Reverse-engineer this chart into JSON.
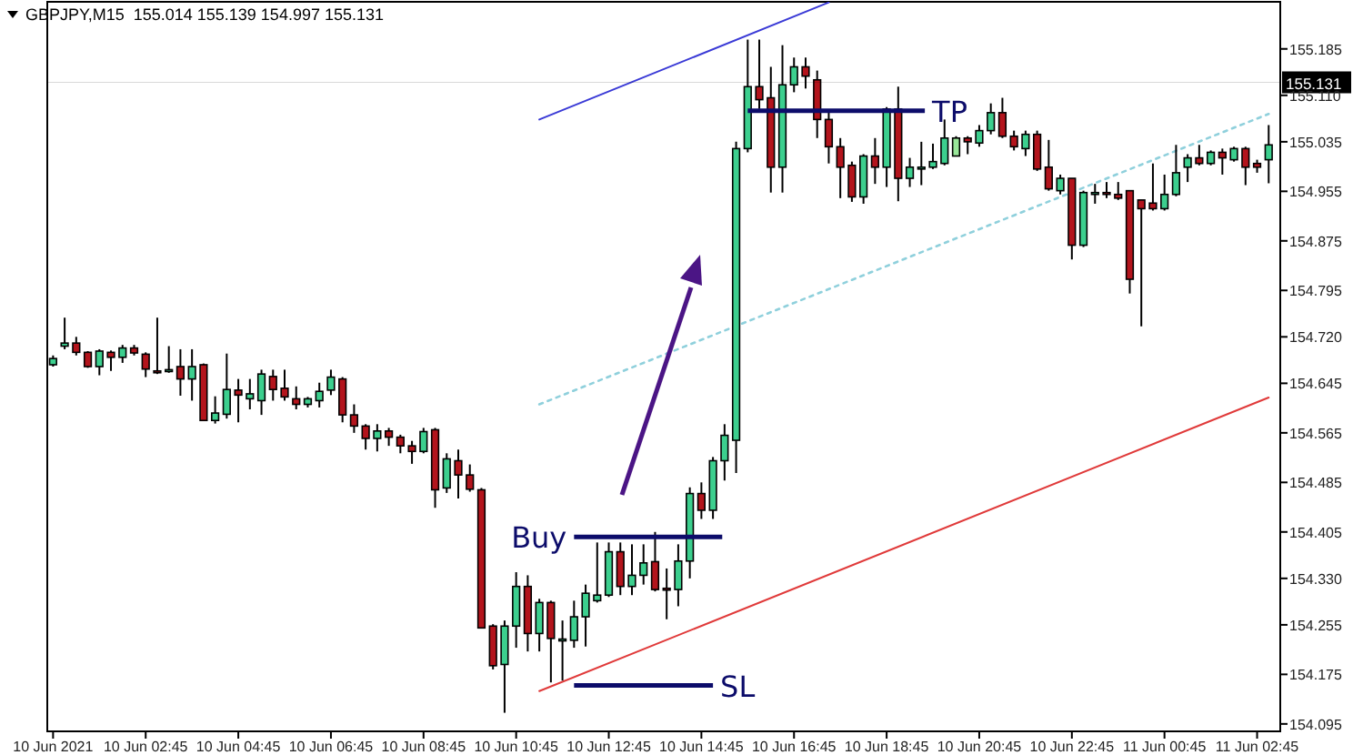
{
  "chart_data": {
    "type": "candlestick",
    "title": "GBPJPY,M15  155.014 155.139 154.997 155.131",
    "categories": [
      "10 Jun 2021",
      null,
      null,
      null,
      null,
      null,
      null,
      null,
      "10 Jun 02:45",
      null,
      null,
      null,
      null,
      null,
      null,
      null,
      "10 Jun 04:45",
      null,
      null,
      null,
      null,
      null,
      null,
      null,
      "10 Jun 06:45",
      null,
      null,
      null,
      null,
      null,
      null,
      null,
      "10 Jun 08:45",
      null,
      null,
      null,
      null,
      null,
      null,
      null,
      "10 Jun 10:45",
      null,
      null,
      null,
      null,
      null,
      null,
      null,
      "10 Jun 12:45",
      null,
      null,
      null,
      null,
      null,
      null,
      null,
      "10 Jun 14:45",
      null,
      null,
      null,
      null,
      null,
      null,
      null,
      "10 Jun 16:45",
      null,
      null,
      null,
      null,
      null,
      null,
      null,
      "10 Jun 18:45",
      null,
      null,
      null,
      null,
      null,
      null,
      null,
      "10 Jun 20:45",
      null,
      null,
      null,
      null,
      null,
      null,
      null,
      "10 Jun 22:45",
      null,
      null,
      null,
      null,
      null,
      null,
      null,
      "11 Jun 00:45",
      null,
      null,
      null,
      null,
      null,
      null,
      null,
      "11 Jun 02:45",
      null
    ],
    "ohlc": [
      [
        154.675,
        154.69,
        154.672,
        154.685
      ],
      [
        154.705,
        154.751,
        154.7,
        154.71
      ],
      [
        154.71,
        154.72,
        154.69,
        154.695
      ],
      [
        154.695,
        154.697,
        154.67,
        154.672
      ],
      [
        154.672,
        154.7,
        154.658,
        154.697
      ],
      [
        154.695,
        154.698,
        154.665,
        154.687
      ],
      [
        154.687,
        154.707,
        154.678,
        154.702
      ],
      [
        154.702,
        154.707,
        154.69,
        154.694
      ],
      [
        154.692,
        154.695,
        154.655,
        154.668
      ],
      [
        154.665,
        154.751,
        154.66,
        154.663
      ],
      [
        154.664,
        154.705,
        154.662,
        154.667
      ],
      [
        154.672,
        154.7,
        154.625,
        154.652
      ],
      [
        154.652,
        154.7,
        154.617,
        154.672
      ],
      [
        154.675,
        154.677,
        154.585,
        154.585
      ],
      [
        154.585,
        154.624,
        154.58,
        154.597
      ],
      [
        154.595,
        154.693,
        154.588,
        154.635
      ],
      [
        154.634,
        154.652,
        154.582,
        154.626
      ],
      [
        154.62,
        154.652,
        154.603,
        154.628
      ],
      [
        154.617,
        154.667,
        154.594,
        154.66
      ],
      [
        154.656,
        154.667,
        154.617,
        154.635
      ],
      [
        154.637,
        154.667,
        154.617,
        154.623
      ],
      [
        154.62,
        154.64,
        154.603,
        154.611
      ],
      [
        154.611,
        154.623,
        154.606,
        154.62
      ],
      [
        154.617,
        154.646,
        154.606,
        154.632
      ],
      [
        154.634,
        154.667,
        154.626,
        154.655
      ],
      [
        154.652,
        154.655,
        154.582,
        154.594
      ],
      [
        154.594,
        154.611,
        154.565,
        154.576
      ],
      [
        154.576,
        154.579,
        154.538,
        154.556
      ],
      [
        154.556,
        154.579,
        154.535,
        154.568
      ],
      [
        154.568,
        154.573,
        154.544,
        154.558
      ],
      [
        154.558,
        154.562,
        154.532,
        154.544
      ],
      [
        154.544,
        154.552,
        154.515,
        154.535
      ],
      [
        154.535,
        154.573,
        154.532,
        154.567
      ],
      [
        154.57,
        154.573,
        154.444,
        154.473
      ],
      [
        154.476,
        154.532,
        154.468,
        154.523
      ],
      [
        154.52,
        154.538,
        154.459,
        154.497
      ],
      [
        154.497,
        154.514,
        154.47,
        154.474
      ],
      [
        154.473,
        154.476,
        154.25,
        154.25
      ],
      [
        154.253,
        154.256,
        154.183,
        154.189
      ],
      [
        154.191,
        154.262,
        154.113,
        154.253
      ],
      [
        154.253,
        154.34,
        154.218,
        154.317
      ],
      [
        154.317,
        154.335,
        154.212,
        154.241
      ],
      [
        154.241,
        154.297,
        154.212,
        154.291
      ],
      [
        154.291,
        154.294,
        154.162,
        154.233
      ],
      [
        154.23,
        154.262,
        154.165,
        154.232
      ],
      [
        154.23,
        154.294,
        154.218,
        154.268
      ],
      [
        154.268,
        154.32,
        154.22,
        154.306
      ],
      [
        154.294,
        154.388,
        154.291,
        154.303
      ],
      [
        154.303,
        154.388,
        154.3,
        154.373
      ],
      [
        154.373,
        154.388,
        154.303,
        154.317
      ],
      [
        154.317,
        154.385,
        154.303,
        154.335
      ],
      [
        154.335,
        154.385,
        154.32,
        154.355
      ],
      [
        154.357,
        154.405,
        154.309,
        154.312
      ],
      [
        154.314,
        154.346,
        154.264,
        154.312
      ],
      [
        154.312,
        154.385,
        154.285,
        154.358
      ],
      [
        154.358,
        154.477,
        154.33,
        154.467
      ],
      [
        154.467,
        154.485,
        154.426,
        154.44
      ],
      [
        154.44,
        154.526,
        154.426,
        154.52
      ],
      [
        154.52,
        154.579,
        154.488,
        154.561
      ],
      [
        154.553,
        155.035,
        154.5,
        155.024
      ],
      [
        155.024,
        155.2,
        155.018,
        155.124
      ],
      [
        155.124,
        155.2,
        155.088,
        155.103
      ],
      [
        155.106,
        155.156,
        154.953,
        154.994
      ],
      [
        154.994,
        155.191,
        154.953,
        155.127
      ],
      [
        155.127,
        155.171,
        155.115,
        155.156
      ],
      [
        155.156,
        155.171,
        155.121,
        155.141
      ],
      [
        155.135,
        155.15,
        155.041,
        155.071
      ],
      [
        155.071,
        155.085,
        155,
        155.027
      ],
      [
        155.027,
        155.041,
        154.944,
        154.994
      ],
      [
        154.997,
        155.003,
        154.938,
        154.946
      ],
      [
        154.946,
        155.015,
        154.935,
        155.012
      ],
      [
        155.012,
        155.041,
        154.967,
        154.994
      ],
      [
        154.994,
        155.091,
        154.962,
        155.088
      ],
      [
        155.088,
        155.124,
        154.939,
        154.976
      ],
      [
        154.976,
        155.009,
        154.962,
        154.994
      ],
      [
        154.991,
        155.035,
        154.965,
        154.994
      ],
      [
        154.994,
        155.032,
        154.991,
        155.003
      ],
      [
        155,
        155.071,
        154.997,
        155.041
      ],
      [
        155.012,
        155.044,
        155.012,
        155.041
      ],
      [
        155.041,
        155.044,
        155.015,
        155.035
      ],
      [
        155.033,
        155.062,
        155.027,
        155.053
      ],
      [
        155.053,
        155.097,
        155.047,
        155.082
      ],
      [
        155.082,
        155.106,
        155.041,
        155.044
      ],
      [
        155.044,
        155.053,
        155.021,
        155.027
      ],
      [
        155.024,
        155.053,
        155.012,
        155.047
      ],
      [
        155.047,
        155.053,
        154.988,
        154.991
      ],
      [
        154.994,
        155.038,
        154.956,
        154.959
      ],
      [
        154.956,
        154.982,
        154.95,
        154.976
      ],
      [
        154.976,
        154.976,
        154.845,
        154.868
      ],
      [
        154.868,
        154.956,
        154.865,
        154.953
      ],
      [
        154.95,
        154.967,
        154.935,
        154.953
      ],
      [
        154.953,
        154.97,
        154.944,
        154.95
      ],
      [
        154.95,
        154.97,
        154.941,
        154.944
      ],
      [
        154.956,
        154.956,
        154.79,
        154.813
      ],
      [
        154.941,
        154.941,
        154.737,
        154.927
      ],
      [
        154.936,
        155,
        154.924,
        154.927
      ],
      [
        154.927,
        154.982,
        154.924,
        154.95
      ],
      [
        154.95,
        155.03,
        154.947,
        154.985
      ],
      [
        154.994,
        155.015,
        154.97,
        155.009
      ],
      [
        155.009,
        155.03,
        154.997,
        155
      ],
      [
        155,
        155.021,
        154.997,
        155.018
      ],
      [
        155.018,
        155.024,
        154.982,
        155.009
      ],
      [
        155.006,
        155.027,
        155.003,
        155.024
      ],
      [
        155.024,
        155.027,
        154.965,
        154.994
      ],
      [
        155,
        155.006,
        154.985,
        154.994
      ],
      [
        155.006,
        155.062,
        154.968,
        155.03
      ]
    ],
    "colors": [
      "#3ccf8e",
      "#3ccf8e",
      "#b3141c",
      "#b3141c",
      "#3ccf8e",
      "#b3141c",
      "#3ccf8e",
      "#b3141c",
      "#b3141c",
      "#b3141c",
      "#3ccf8e",
      "#b3141c",
      "#3ccf8e",
      "#b3141c",
      "#3ccf8e",
      "#3ccf8e",
      "#b3141c",
      "#3ccf8e",
      "#3ccf8e",
      "#b3141c",
      "#b3141c",
      "#b3141c",
      "#3ccf8e",
      "#3ccf8e",
      "#3ccf8e",
      "#b3141c",
      "#b3141c",
      "#b3141c",
      "#3ccf8e",
      "#b3141c",
      "#b3141c",
      "#b3141c",
      "#3ccf8e",
      "#b3141c",
      "#3ccf8e",
      "#b3141c",
      "#b3141c",
      "#b3141c",
      "#b3141c",
      "#3ccf8e",
      "#3ccf8e",
      "#b3141c",
      "#3ccf8e",
      "#b3141c",
      "#3ccf8e",
      "#3ccf8e",
      "#3ccf8e",
      "#3ccf8e",
      "#3ccf8e",
      "#b3141c",
      "#3ccf8e",
      "#3ccf8e",
      "#b3141c",
      "#b3141c",
      "#3ccf8e",
      "#3ccf8e",
      "#b3141c",
      "#3ccf8e",
      "#3ccf8e",
      "#3ccf8e",
      "#3ccf8e",
      "#b3141c",
      "#b3141c",
      "#3ccf8e",
      "#3ccf8e",
      "#b3141c",
      "#b3141c",
      "#b3141c",
      "#b3141c",
      "#b3141c",
      "#3ccf8e",
      "#b3141c",
      "#3ccf8e",
      "#b3141c",
      "#3ccf8e",
      "#3ccf8e",
      "#3ccf8e",
      "#3ccf8e",
      "#9ae89a",
      "#b3141c",
      "#3ccf8e",
      "#3ccf8e",
      "#b3141c",
      "#b3141c",
      "#3ccf8e",
      "#b3141c",
      "#b3141c",
      "#3ccf8e",
      "#b3141c",
      "#3ccf8e",
      "#3ccf8e",
      "#b3141c",
      "#b3141c",
      "#b3141c",
      "#b3141c",
      "#b3141c",
      "#3ccf8e",
      "#3ccf8e",
      "#3ccf8e",
      "#b3141c",
      "#3ccf8e",
      "#b3141c",
      "#3ccf8e",
      "#b3141c",
      "#b3141c",
      "#3ccf8e"
    ],
    "series": [
      {
        "type": "line",
        "values": [
          null,
          null,
          null,
          null,
          null,
          null,
          null,
          null,
          null,
          null,
          null,
          null,
          null,
          null,
          null,
          null,
          null,
          null,
          null,
          null,
          null,
          null,
          null,
          null,
          null,
          null,
          null,
          null,
          null,
          null,
          null,
          null,
          null,
          null,
          null,
          null,
          null,
          null,
          null,
          null,
          null,
          null,
          155.071,
          null,
          null,
          null,
          null,
          null,
          null,
          null,
          null,
          null,
          null,
          null,
          null,
          null,
          null,
          null,
          null,
          null,
          null,
          null,
          null,
          null,
          null,
          null,
          null,
          155.26,
          null,
          null,
          null,
          null,
          null,
          null,
          null,
          null,
          null,
          null,
          null,
          null,
          null,
          null,
          null,
          null,
          null,
          null,
          null,
          null,
          null,
          null,
          null,
          null,
          null,
          null,
          null,
          null,
          null,
          null,
          null,
          null,
          null,
          null,
          null,
          null,
          null,
          null
        ],
        "color": "#3a3ad6",
        "line_style": "solid"
      },
      {
        "type": "line",
        "values": [
          null,
          null,
          null,
          null,
          null,
          null,
          null,
          null,
          null,
          null,
          null,
          null,
          null,
          null,
          null,
          null,
          null,
          null,
          null,
          null,
          null,
          null,
          null,
          null,
          null,
          null,
          null,
          null,
          null,
          null,
          null,
          null,
          null,
          null,
          null,
          null,
          null,
          null,
          null,
          null,
          null,
          null,
          154.148,
          null,
          null,
          null,
          null,
          null,
          null,
          null,
          null,
          null,
          null,
          null,
          null,
          null,
          null,
          null,
          null,
          null,
          null,
          null,
          null,
          null,
          null,
          null,
          null,
          null,
          null,
          null,
          null,
          null,
          null,
          null,
          null,
          null,
          null,
          null,
          null,
          null,
          null,
          null,
          null,
          null,
          null,
          null,
          null,
          null,
          null,
          null,
          null,
          null,
          null,
          null,
          null,
          null,
          null,
          null,
          null,
          null,
          null,
          null,
          null,
          null,
          null,
          154.622
        ],
        "color": "#e03a3a",
        "line_style": "solid"
      },
      {
        "type": "line",
        "values": [
          null,
          null,
          null,
          null,
          null,
          null,
          null,
          null,
          null,
          null,
          null,
          null,
          null,
          null,
          null,
          null,
          null,
          null,
          null,
          null,
          null,
          null,
          null,
          null,
          null,
          null,
          null,
          null,
          null,
          null,
          null,
          null,
          null,
          null,
          null,
          null,
          null,
          null,
          null,
          null,
          null,
          null,
          154.611,
          null,
          null,
          null,
          null,
          null,
          null,
          null,
          null,
          null,
          null,
          null,
          null,
          null,
          null,
          null,
          null,
          null,
          null,
          null,
          null,
          null,
          null,
          null,
          null,
          null,
          null,
          null,
          null,
          null,
          null,
          null,
          null,
          null,
          null,
          null,
          null,
          null,
          null,
          null,
          null,
          null,
          null,
          null,
          null,
          null,
          null,
          null,
          null,
          null,
          null,
          null,
          null,
          null,
          null,
          null,
          null,
          null,
          null,
          null,
          null,
          null,
          null,
          155.08
        ],
        "color": "#8fd0dc",
        "line_style": "dotted"
      }
    ],
    "ref_lines": [
      {
        "axis": "y",
        "value": 154.397,
        "label": "Buy",
        "color": "#0c0c6a"
      },
      {
        "axis": "y",
        "value": 155.085,
        "label": "TP",
        "color": "#0c0c6a"
      },
      {
        "axis": "y",
        "value": 154.157,
        "label": "SL",
        "color": "#0c0c6a"
      },
      {
        "axis": "y",
        "value": 155.131,
        "label": "155.131",
        "color": "#000000"
      }
    ],
    "ylim": [
      154.083,
      155.261
    ],
    "yticks": [
      {
        "value": 154.095,
        "label": "154.095"
      },
      154.175,
      154.255,
      {
        "value": 154.33,
        "label": "154.330"
      },
      154.405,
      154.485,
      154.565,
      154.645,
      {
        "value": 154.72,
        "label": "154.720"
      },
      154.795,
      154.875,
      154.955,
      155.035,
      {
        "value": 155.11,
        "label": "155.110"
      },
      155.185
    ],
    "grid": false
  }
}
